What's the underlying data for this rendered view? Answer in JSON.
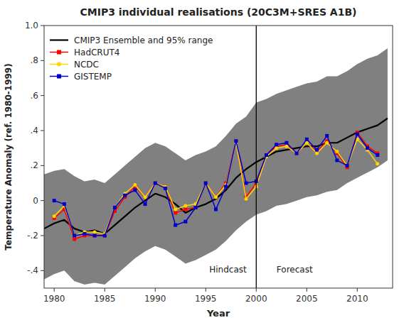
{
  "chart_data": {
    "type": "line",
    "title": "CMIP3 individual realisations (20C3M+SRES A1B)",
    "x_label": "Year",
    "y_label": "Temperature Anomaly (ref. 1980-1999)",
    "xlim": [
      1979,
      2013.5
    ],
    "ylim": [
      -0.5,
      1.0
    ],
    "xticks": [
      1980,
      1985,
      1990,
      1995,
      2000,
      2005,
      2010
    ],
    "yticks": [
      {
        "value": -0.4,
        "label": "-.4"
      },
      {
        "value": -0.2,
        "label": "-.2"
      },
      0,
      {
        "value": 0.2,
        "label": ".2"
      },
      {
        "value": 0.4,
        "label": ".4"
      },
      {
        "value": 0.6,
        "label": ".6"
      },
      {
        "value": 0.8,
        "label": ".8"
      },
      {
        "value": 1.0,
        "label": "1.0"
      }
    ],
    "grid": false,
    "legend": "upper left",
    "band": {
      "color": "#808080",
      "x": [
        1979,
        1980,
        1981,
        1982,
        1983,
        1984,
        1985,
        1986,
        1987,
        1988,
        1989,
        1990,
        1991,
        1992,
        1993,
        1994,
        1995,
        1996,
        1997,
        1998,
        1999,
        2000,
        2001,
        2002,
        2003,
        2004,
        2005,
        2006,
        2007,
        2008,
        2009,
        2010,
        2011,
        2012,
        2013
      ],
      "upper": [
        0.15,
        0.17,
        0.18,
        0.14,
        0.11,
        0.12,
        0.1,
        0.15,
        0.2,
        0.25,
        0.3,
        0.33,
        0.31,
        0.27,
        0.23,
        0.26,
        0.28,
        0.31,
        0.37,
        0.44,
        0.48,
        0.56,
        0.58,
        0.61,
        0.63,
        0.65,
        0.67,
        0.68,
        0.71,
        0.71,
        0.74,
        0.78,
        0.81,
        0.83,
        0.87
      ],
      "lower": [
        -0.45,
        -0.42,
        -0.4,
        -0.46,
        -0.48,
        -0.47,
        -0.48,
        -0.43,
        -0.38,
        -0.33,
        -0.29,
        -0.26,
        -0.28,
        -0.32,
        -0.36,
        -0.34,
        -0.31,
        -0.28,
        -0.23,
        -0.17,
        -0.12,
        -0.08,
        -0.06,
        -0.03,
        -0.02,
        0.0,
        0.02,
        0.03,
        0.05,
        0.06,
        0.1,
        0.13,
        0.16,
        0.19,
        0.23
      ]
    },
    "series": [
      {
        "name": "CMIP3 Ensemble and 95% range",
        "color": "#000000",
        "x": [
          1979,
          1980,
          1981,
          1982,
          1983,
          1984,
          1985,
          1986,
          1987,
          1988,
          1989,
          1990,
          1991,
          1992,
          1993,
          1994,
          1995,
          1996,
          1997,
          1998,
          1999,
          2000,
          2001,
          2002,
          2003,
          2004,
          2005,
          2006,
          2007,
          2008,
          2009,
          2010,
          2011,
          2012,
          2013
        ],
        "values": [
          -0.16,
          -0.13,
          -0.11,
          -0.16,
          -0.18,
          -0.17,
          -0.19,
          -0.14,
          -0.09,
          -0.04,
          0.0,
          0.04,
          0.02,
          -0.02,
          -0.07,
          -0.04,
          -0.02,
          0.01,
          0.06,
          0.13,
          0.18,
          0.22,
          0.25,
          0.28,
          0.29,
          0.3,
          0.31,
          0.31,
          0.33,
          0.33,
          0.36,
          0.39,
          0.41,
          0.43,
          0.47
        ]
      },
      {
        "name": "HadCRUT4",
        "color": "#ff0000",
        "marker": "square",
        "x": [
          1980,
          1981,
          1982,
          1983,
          1984,
          1985,
          1986,
          1987,
          1988,
          1989,
          1990,
          1991,
          1992,
          1993,
          1994,
          1995,
          1996,
          1997,
          1998,
          1999,
          2000,
          2001,
          2002,
          2003,
          2004,
          2005,
          2006,
          2007,
          2008,
          2009,
          2010,
          2011,
          2012
        ],
        "values": [
          -0.1,
          -0.05,
          -0.22,
          -0.2,
          -0.2,
          -0.2,
          -0.06,
          0.02,
          0.08,
          0.02,
          0.1,
          0.08,
          -0.07,
          -0.05,
          -0.04,
          0.1,
          0.02,
          0.1,
          0.34,
          0.02,
          0.1,
          0.26,
          0.31,
          0.32,
          0.27,
          0.33,
          0.28,
          0.34,
          0.27,
          0.19,
          0.39,
          0.31,
          0.27
        ]
      },
      {
        "name": "NCDC",
        "color": "#ffd700",
        "marker": "circle",
        "x": [
          1980,
          1981,
          1982,
          1983,
          1984,
          1985,
          1986,
          1987,
          1988,
          1989,
          1990,
          1991,
          1992,
          1993,
          1994,
          1995,
          1996,
          1997,
          1998,
          1999,
          2000,
          2001,
          2002,
          2003,
          2004,
          2005,
          2006,
          2007,
          2008,
          2009,
          2010,
          2011,
          2012
        ],
        "values": [
          -0.09,
          -0.03,
          -0.2,
          -0.18,
          -0.18,
          -0.19,
          -0.04,
          0.04,
          0.09,
          0.02,
          0.1,
          0.08,
          -0.05,
          -0.03,
          -0.02,
          0.1,
          0.02,
          0.09,
          0.33,
          0.01,
          0.08,
          0.25,
          0.3,
          0.31,
          0.27,
          0.33,
          0.27,
          0.33,
          0.28,
          0.2,
          0.35,
          0.29,
          0.21
        ]
      },
      {
        "name": "GISTEMP",
        "color": "#0000cc",
        "marker": "square",
        "x": [
          1980,
          1981,
          1982,
          1983,
          1984,
          1985,
          1986,
          1987,
          1988,
          1989,
          1990,
          1991,
          1992,
          1993,
          1994,
          1995,
          1996,
          1997,
          1998,
          1999,
          2000,
          2001,
          2002,
          2003,
          2004,
          2005,
          2006,
          2007,
          2008,
          2009,
          2010,
          2011,
          2012
        ],
        "values": [
          0.0,
          -0.02,
          -0.2,
          -0.19,
          -0.2,
          -0.2,
          -0.04,
          0.03,
          0.06,
          -0.02,
          0.1,
          0.07,
          -0.14,
          -0.12,
          -0.04,
          0.1,
          -0.05,
          0.08,
          0.34,
          0.1,
          0.11,
          0.26,
          0.32,
          0.33,
          0.27,
          0.35,
          0.29,
          0.37,
          0.23,
          0.2,
          0.38,
          0.3,
          0.26
        ]
      }
    ],
    "vline": {
      "x": 2000,
      "color": "#000000"
    },
    "annotations": [
      {
        "text": "Hindcast",
        "x": 1997.2,
        "y": -0.42
      },
      {
        "text": "Forecast",
        "x": 2003.8,
        "y": -0.42
      }
    ]
  }
}
